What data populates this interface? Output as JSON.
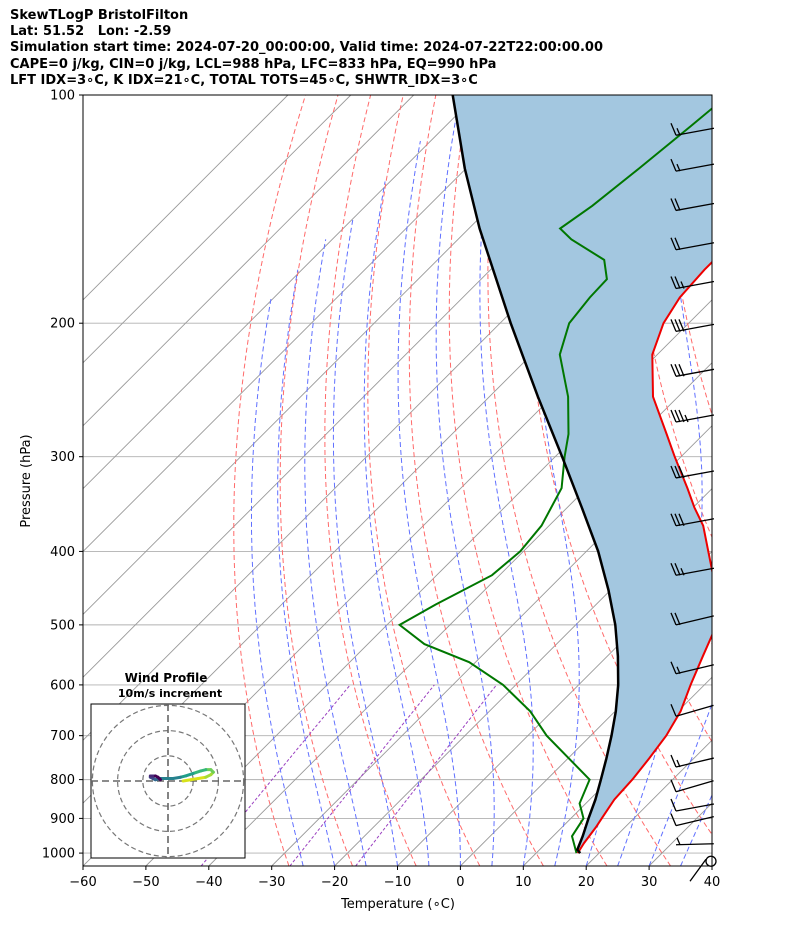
{
  "header": {
    "line1": "SkewTLogP BristolFilton",
    "line2": "Lat: 51.52   Lon: -2.59",
    "line3": "Simulation start time: 2024-07-20_00:00:00, Valid time: 2024-07-22T22:00:00.00",
    "line4": "CAPE=0 j/kg, CIN=0 j/kg, LCL=988 hPa, LFC=833 hPa, EQ=990 hPa",
    "line5": "LFT IDX=3∘C, K IDX=21∘C, TOTAL TOTS=45∘C, SHWTR_IDX=3∘C"
  },
  "colors": {
    "temperature": "#ee0000",
    "dewpoint": "#007700",
    "parcel": "#000000",
    "cape_fill": "#a3c7e0",
    "isotherm": "#999999",
    "dry_adiabat": "#ff6a6a",
    "moist_adiabat": "#6070ff",
    "mixing_ratio": "#9a40c0"
  },
  "chart_data": {
    "type": "skewt-logp",
    "xlabel": "Temperature (∘C)",
    "ylabel": "Pressure (hPa)",
    "xlim": [
      -60,
      40
    ],
    "ylim": [
      1040,
      100
    ],
    "x_ticks": [
      "−60",
      "−50",
      "−40",
      "−30",
      "−20",
      "−10",
      "0",
      "10",
      "20",
      "30",
      "40"
    ],
    "y_ticks": [
      "100",
      "200",
      "300",
      "400",
      "500",
      "600",
      "700",
      "800",
      "900",
      "1000"
    ],
    "temperature": [
      [
        1000,
        16.6
      ],
      [
        970,
        16.0
      ],
      [
        925,
        15.4
      ],
      [
        900,
        14.9
      ],
      [
        850,
        13.9
      ],
      [
        800,
        13.6
      ],
      [
        750,
        12.9
      ],
      [
        700,
        12.0
      ],
      [
        650,
        10.4
      ],
      [
        600,
        7.8
      ],
      [
        550,
        5.2
      ],
      [
        500,
        2.4
      ],
      [
        450,
        -3.2
      ],
      [
        400,
        -10.6
      ],
      [
        370,
        -15.5
      ],
      [
        350,
        -19.8
      ],
      [
        330,
        -24.0
      ],
      [
        300,
        -31.0
      ],
      [
        280,
        -35.9
      ],
      [
        250,
        -44.0
      ],
      [
        220,
        -50.8
      ],
      [
        200,
        -54.0
      ],
      [
        185,
        -55.5
      ],
      [
        170,
        -56.0
      ],
      [
        160,
        -56.0
      ],
      [
        150,
        -56.6
      ],
      [
        140,
        -55.6
      ],
      [
        130,
        -54.6
      ],
      [
        120,
        -52.7
      ],
      [
        110,
        -52.0
      ],
      [
        105,
        -50.5
      ],
      [
        100,
        -49.0
      ]
    ],
    "dewpoint": [
      [
        1000,
        16.4
      ],
      [
        950,
        13.0
      ],
      [
        900,
        12.0
      ],
      [
        860,
        9.0
      ],
      [
        800,
        6.8
      ],
      [
        700,
        -7.0
      ],
      [
        650,
        -13.5
      ],
      [
        600,
        -22.0
      ],
      [
        560,
        -31.0
      ],
      [
        530,
        -41.0
      ],
      [
        500,
        -48.0
      ],
      [
        470,
        -45.5
      ],
      [
        430,
        -41.2
      ],
      [
        400,
        -40.5
      ],
      [
        370,
        -41.2
      ],
      [
        330,
        -44.0
      ],
      [
        300,
        -48.5
      ],
      [
        280,
        -51.5
      ],
      [
        250,
        -57.5
      ],
      [
        220,
        -65.5
      ],
      [
        200,
        -69.0
      ],
      [
        185,
        -69.8
      ],
      [
        175,
        -70.0
      ],
      [
        165,
        -73.5
      ],
      [
        155,
        -82.0
      ],
      [
        150,
        -85.5
      ],
      [
        140,
        -84.0
      ],
      [
        125,
        -82.5
      ],
      [
        110,
        -81.0
      ],
      [
        100,
        -80.0
      ]
    ],
    "parcel": [
      [
        1000,
        17.0
      ],
      [
        990,
        16.0
      ],
      [
        950,
        14.7
      ],
      [
        900,
        12.8
      ],
      [
        850,
        10.9
      ],
      [
        800,
        8.6
      ],
      [
        750,
        6.1
      ],
      [
        700,
        3.3
      ],
      [
        650,
        0.1
      ],
      [
        600,
        -3.7
      ],
      [
        550,
        -8.3
      ],
      [
        500,
        -13.7
      ],
      [
        450,
        -20.3
      ],
      [
        400,
        -28.1
      ],
      [
        350,
        -37.7
      ],
      [
        300,
        -48.9
      ],
      [
        250,
        -62.3
      ],
      [
        200,
        -78.3
      ],
      [
        150,
        -98.3
      ],
      [
        125,
        -110.2
      ],
      [
        100,
        -123.8
      ]
    ],
    "wind_barbs": [
      {
        "p": 1025,
        "speed_kt": 0,
        "dir": 0
      },
      {
        "p": 975,
        "speed_kt": 5,
        "dir": 260
      },
      {
        "p": 920,
        "speed_kt": 10,
        "dir": 280
      },
      {
        "p": 880,
        "speed_kt": 10,
        "dir": 275
      },
      {
        "p": 830,
        "speed_kt": 10,
        "dir": 285
      },
      {
        "p": 770,
        "speed_kt": 15,
        "dir": 280
      },
      {
        "p": 660,
        "speed_kt": 10,
        "dir": 285
      },
      {
        "p": 580,
        "speed_kt": 15,
        "dir": 280
      },
      {
        "p": 500,
        "speed_kt": 20,
        "dir": 280
      },
      {
        "p": 430,
        "speed_kt": 25,
        "dir": 275
      },
      {
        "p": 370,
        "speed_kt": 30,
        "dir": 275
      },
      {
        "p": 320,
        "speed_kt": 30,
        "dir": 275
      },
      {
        "p": 270,
        "speed_kt": 35,
        "dir": 275
      },
      {
        "p": 235,
        "speed_kt": 30,
        "dir": 275
      },
      {
        "p": 205,
        "speed_kt": 30,
        "dir": 275
      },
      {
        "p": 180,
        "speed_kt": 25,
        "dir": 275
      },
      {
        "p": 160,
        "speed_kt": 20,
        "dir": 275
      },
      {
        "p": 142,
        "speed_kt": 20,
        "dir": 275
      },
      {
        "p": 126,
        "speed_kt": 15,
        "dir": 275
      },
      {
        "p": 113,
        "speed_kt": 15,
        "dir": 275
      }
    ],
    "hodograph": {
      "title": "Wind Profile",
      "subtitle": "10m/s increment",
      "ring_increment_ms": 10,
      "points": [
        [
          6,
          0
        ],
        [
          9,
          0.5
        ],
        [
          12,
          1
        ],
        [
          15,
          1.5
        ],
        [
          17,
          2.5
        ],
        [
          18,
          3.5
        ],
        [
          17,
          4.5
        ],
        [
          15,
          4.5
        ],
        [
          13,
          4
        ],
        [
          10,
          3
        ],
        [
          7,
          2
        ],
        [
          5,
          1.5
        ],
        [
          2,
          1
        ],
        [
          0,
          1
        ],
        [
          -3,
          1
        ],
        [
          -5,
          0.5
        ],
        [
          -6,
          1
        ],
        [
          -7,
          1.5
        ],
        [
          -7,
          2
        ],
        [
          -6,
          2
        ],
        [
          -5,
          2
        ],
        [
          -4,
          1.5
        ],
        [
          -3,
          0.5
        ]
      ]
    }
  }
}
